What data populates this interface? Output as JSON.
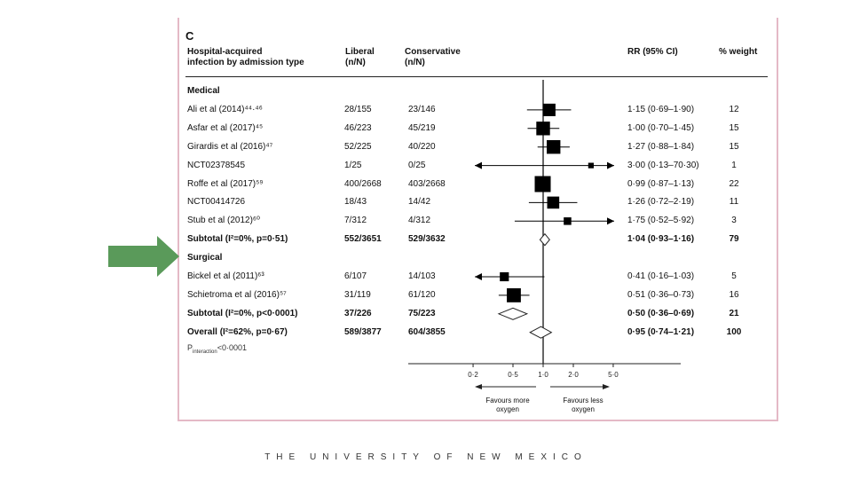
{
  "panel_letter": "C",
  "headers": {
    "study": "Hospital-acquired\ninfection by admission type",
    "liberal": "Liberal\n(n/N)",
    "conservative": "Conservative\n(n/N)",
    "rr": "RR (95% CI)",
    "weight": "% weight"
  },
  "footer": "THE UNIVERSITY OF NEW MEXICO",
  "p_interaction": {
    "label": "P",
    "sub": "interaction",
    "value": "<0·0001"
  },
  "axis": {
    "ticks": [
      "0·2",
      "0·5",
      "1·0",
      "2·0",
      "5·0"
    ],
    "left_label": "Favours more\noxygen",
    "right_label": "Favours less\noxygen"
  },
  "colors": {
    "marker": "#000000",
    "arrow": "#5a9a5a",
    "border": "#e4b9c6"
  },
  "chart_data": {
    "type": "forest",
    "scale": "log",
    "xlim": [
      0.2,
      5.0
    ],
    "reference_line": 1.0,
    "rows": [
      {
        "kind": "group",
        "label": "Medical"
      },
      {
        "kind": "study",
        "label": "Ali et al (2014)⁴⁴·⁴⁶",
        "liberal": "28/155",
        "conservative": "23/146",
        "rr": 1.15,
        "lo": 0.69,
        "hi": 1.9,
        "ci_text": "1·15 (0·69–1·90)",
        "weight": 12
      },
      {
        "kind": "study",
        "label": "Asfar et al (2017)⁴⁵",
        "liberal": "46/223",
        "conservative": "45/219",
        "rr": 1.0,
        "lo": 0.7,
        "hi": 1.45,
        "ci_text": "1·00 (0·70–1·45)",
        "weight": 15
      },
      {
        "kind": "study",
        "label": "Girardis et al (2016)⁴⁷",
        "liberal": "52/225",
        "conservative": "40/220",
        "rr": 1.27,
        "lo": 0.88,
        "hi": 1.84,
        "ci_text": "1·27 (0·88–1·84)",
        "weight": 15
      },
      {
        "kind": "study",
        "label": "NCT02378545",
        "liberal": "1/25",
        "conservative": "0/25",
        "rr": 3.0,
        "lo": 0.13,
        "hi": 70.3,
        "ci_text": "3·00 (0·13–70·30)",
        "weight": 1
      },
      {
        "kind": "study",
        "label": "Roffe et al (2017)⁵⁹",
        "liberal": "400/2668",
        "conservative": "403/2668",
        "rr": 0.99,
        "lo": 0.87,
        "hi": 1.13,
        "ci_text": "0·99 (0·87–1·13)",
        "weight": 22
      },
      {
        "kind": "study",
        "label": "NCT00414726",
        "liberal": "18/43",
        "conservative": "14/42",
        "rr": 1.26,
        "lo": 0.72,
        "hi": 2.19,
        "ci_text": "1·26 (0·72–2·19)",
        "weight": 11
      },
      {
        "kind": "study",
        "label": "Stub et al (2012)⁶⁰",
        "liberal": "7/312",
        "conservative": "4/312",
        "rr": 1.75,
        "lo": 0.52,
        "hi": 5.92,
        "ci_text": "1·75 (0·52–5·92)",
        "weight": 3
      },
      {
        "kind": "subtotal",
        "label": "Subtotal  (I²=0%, p=0·51)",
        "liberal": "552/3651",
        "conservative": "529/3632",
        "rr": 1.04,
        "lo": 0.93,
        "hi": 1.16,
        "ci_text": "1·04 (0·93–1·16)",
        "weight": 79
      },
      {
        "kind": "group",
        "label": "Surgical"
      },
      {
        "kind": "study",
        "label": "Bickel et al (2011)⁶³",
        "liberal": "6/107",
        "conservative": "14/103",
        "rr": 0.41,
        "lo": 0.16,
        "hi": 1.03,
        "ci_text": "0·41 (0·16–1·03)",
        "weight": 5
      },
      {
        "kind": "study",
        "label": "Schietroma et al (2016)⁵⁷",
        "liberal": "31/119",
        "conservative": "61/120",
        "rr": 0.51,
        "lo": 0.36,
        "hi": 0.73,
        "ci_text": "0·51 (0·36–0·73)",
        "weight": 16
      },
      {
        "kind": "subtotal",
        "label": "Subtotal  (I²=0%, p<0·0001)",
        "liberal": "37/226",
        "conservative": "75/223",
        "rr": 0.5,
        "lo": 0.36,
        "hi": 0.69,
        "ci_text": "0·50 (0·36–0·69)",
        "weight": 21
      },
      {
        "kind": "overall",
        "label": "Overall  (I²=62%, p=0·67)",
        "liberal": "589/3877",
        "conservative": "604/3855",
        "rr": 0.95,
        "lo": 0.74,
        "hi": 1.21,
        "ci_text": "0·95 (0·74–1·21)",
        "weight": 100
      }
    ]
  }
}
